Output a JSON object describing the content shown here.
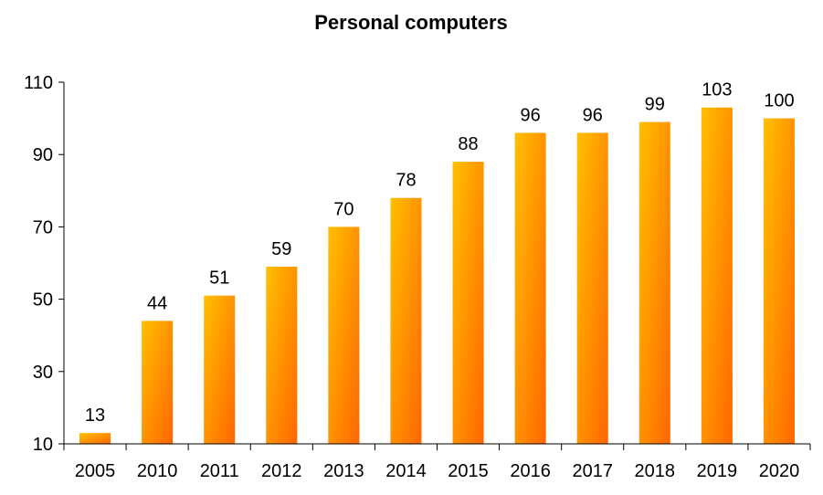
{
  "chart_data": {
    "type": "bar",
    "title": "Personal computers",
    "xlabel": "",
    "ylabel": "",
    "categories": [
      "2005",
      "2010",
      "2011",
      "2012",
      "2013",
      "2014",
      "2015",
      "2016",
      "2017",
      "2018",
      "2019",
      "2020"
    ],
    "values": [
      13,
      44,
      51,
      59,
      70,
      78,
      88,
      96,
      96,
      99,
      103,
      100
    ],
    "data_labels": [
      "13",
      "44",
      "51",
      "59",
      "70",
      "78",
      "88",
      "96",
      "96",
      "99",
      "103",
      "100"
    ],
    "ylim": [
      10,
      110
    ],
    "yticks": [
      10,
      30,
      50,
      70,
      90,
      110
    ],
    "ytick_labels": [
      "10",
      "30",
      "50",
      "70",
      "90",
      "110"
    ],
    "grid": false,
    "legend": "none",
    "colors": {
      "bar_light": "#FFC000",
      "bar_dark": "#FF6600",
      "axis": "#000000",
      "text": "#000000"
    }
  }
}
